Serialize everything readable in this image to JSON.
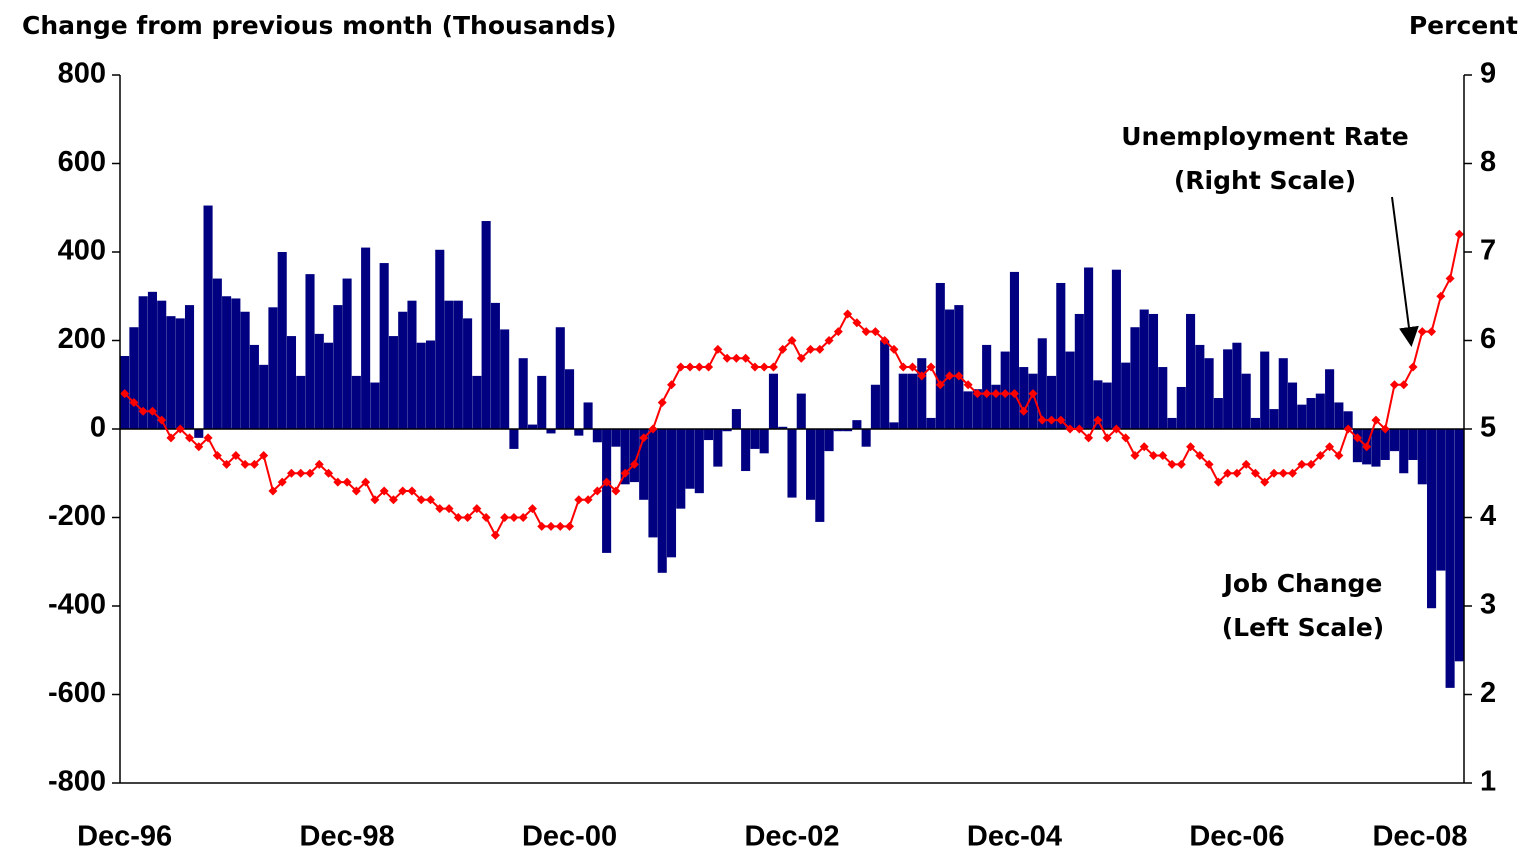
{
  "chart_data": {
    "type": "bar-line",
    "y_label": "Change from previous month (Thousands)",
    "y2_label": "Percent",
    "categories": [
      "Dec-96",
      null,
      null,
      null,
      null,
      null,
      null,
      null,
      null,
      null,
      null,
      null,
      null,
      null,
      null,
      null,
      null,
      null,
      null,
      null,
      null,
      null,
      null,
      null,
      "Dec-98",
      null,
      null,
      null,
      null,
      null,
      null,
      null,
      null,
      null,
      null,
      null,
      null,
      null,
      null,
      null,
      null,
      null,
      null,
      null,
      null,
      null,
      null,
      null,
      "Dec-00",
      null,
      null,
      null,
      null,
      null,
      null,
      null,
      null,
      null,
      null,
      null,
      null,
      null,
      null,
      null,
      null,
      null,
      null,
      null,
      null,
      null,
      null,
      null,
      "Dec-02",
      null,
      null,
      null,
      null,
      null,
      null,
      null,
      null,
      null,
      null,
      null,
      null,
      null,
      null,
      null,
      null,
      null,
      null,
      null,
      null,
      null,
      null,
      null,
      "Dec-04",
      null,
      null,
      null,
      null,
      null,
      null,
      null,
      null,
      null,
      null,
      null,
      null,
      null,
      null,
      null,
      null,
      null,
      null,
      null,
      null,
      null,
      null,
      null,
      "Dec-06",
      null,
      null,
      null,
      null,
      null,
      null,
      null,
      null,
      null,
      null,
      null,
      null,
      null,
      null,
      null,
      null,
      null,
      null,
      null,
      null,
      null,
      null,
      null,
      "Dec-08"
    ],
    "series": [
      {
        "name": "Job Change",
        "kind": "bar",
        "color": "#000080",
        "values": [
          165,
          230,
          300,
          310,
          290,
          255,
          250,
          280,
          -20,
          505,
          340,
          300,
          295,
          265,
          190,
          145,
          275,
          400,
          210,
          120,
          350,
          215,
          195,
          280,
          340,
          120,
          410,
          105,
          375,
          210,
          265,
          290,
          195,
          200,
          405,
          290,
          290,
          250,
          120,
          470,
          285,
          225,
          -45,
          160,
          10,
          120,
          -10,
          230,
          135,
          -15,
          60,
          -30,
          -280,
          -40,
          -125,
          -120,
          -160,
          -245,
          -325,
          -290,
          -180,
          -135,
          -145,
          -25,
          -85,
          -5,
          45,
          -95,
          -45,
          -55,
          125,
          5,
          -155,
          80,
          -160,
          -210,
          -50,
          -5,
          -5,
          20,
          -40,
          100,
          200,
          15,
          125,
          125,
          160,
          25,
          330,
          270,
          280,
          85,
          90,
          190,
          100,
          175,
          355,
          140,
          125,
          205,
          120,
          330,
          175,
          260,
          365,
          110,
          105,
          360,
          150,
          230,
          270,
          260,
          140,
          25,
          95,
          260,
          190,
          160,
          70,
          180,
          195,
          125,
          25,
          175,
          45,
          160,
          105,
          55,
          70,
          80,
          135,
          60,
          40,
          -75,
          -80,
          -85,
          -70,
          -50,
          -100,
          -70,
          -125,
          -405,
          -320,
          -585,
          -525
        ]
      },
      {
        "name": "Unemployment Rate",
        "kind": "line",
        "axis": "y2",
        "color": "#ff0000",
        "values": [
          5.4,
          5.3,
          5.2,
          5.2,
          5.1,
          4.9,
          5.0,
          4.9,
          4.8,
          4.9,
          4.7,
          4.6,
          4.7,
          4.6,
          4.6,
          4.7,
          4.3,
          4.4,
          4.5,
          4.5,
          4.5,
          4.6,
          4.5,
          4.4,
          4.4,
          4.3,
          4.4,
          4.2,
          4.3,
          4.2,
          4.3,
          4.3,
          4.2,
          4.2,
          4.1,
          4.1,
          4.0,
          4.0,
          4.1,
          4.0,
          3.8,
          4.0,
          4.0,
          4.0,
          4.1,
          3.9,
          3.9,
          3.9,
          3.9,
          4.2,
          4.2,
          4.3,
          4.4,
          4.3,
          4.5,
          4.6,
          4.9,
          5.0,
          5.3,
          5.5,
          5.7,
          5.7,
          5.7,
          5.7,
          5.9,
          5.8,
          5.8,
          5.8,
          5.7,
          5.7,
          5.7,
          5.9,
          6.0,
          5.8,
          5.9,
          5.9,
          6.0,
          6.1,
          6.3,
          6.2,
          6.1,
          6.1,
          6.0,
          5.9,
          5.7,
          5.7,
          5.6,
          5.7,
          5.5,
          5.6,
          5.6,
          5.5,
          5.4,
          5.4,
          5.4,
          5.4,
          5.4,
          5.2,
          5.4,
          5.1,
          5.1,
          5.1,
          5.0,
          5.0,
          4.9,
          5.1,
          4.9,
          5.0,
          4.9,
          4.7,
          4.8,
          4.7,
          4.7,
          4.6,
          4.6,
          4.8,
          4.7,
          4.6,
          4.4,
          4.5,
          4.5,
          4.6,
          4.5,
          4.4,
          4.5,
          4.5,
          4.5,
          4.6,
          4.6,
          4.7,
          4.8,
          4.7,
          5.0,
          4.9,
          4.8,
          5.1,
          5.0,
          5.5,
          5.5,
          5.7,
          6.1,
          6.1,
          6.5,
          6.7,
          7.2
        ]
      }
    ],
    "ylim": [
      -800,
      800
    ],
    "yticks": [
      -800,
      -600,
      -400,
      -200,
      0,
      200,
      400,
      600,
      800
    ],
    "y2lim": [
      1,
      9
    ],
    "y2ticks": [
      1,
      2,
      3,
      4,
      5,
      6,
      7,
      8,
      9
    ],
    "annotations": [
      {
        "lines": [
          "Unemployment Rate",
          "(Right Scale)"
        ]
      },
      {
        "lines": [
          "Job Change",
          "(Left Scale)"
        ]
      }
    ]
  }
}
